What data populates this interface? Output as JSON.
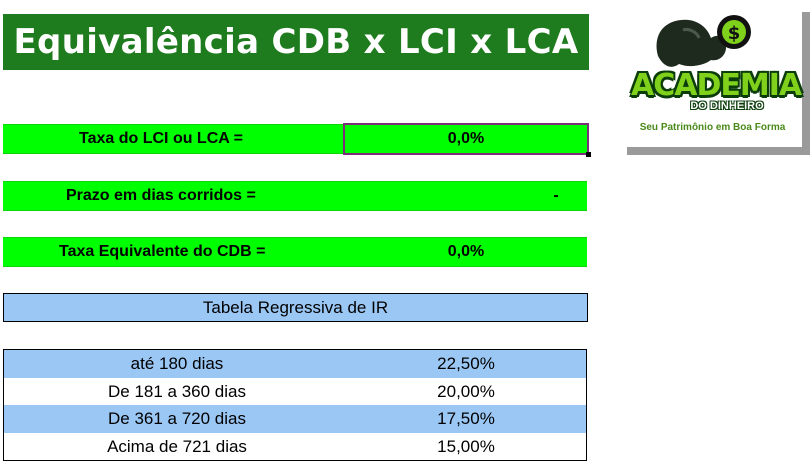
{
  "title": "Equivalência CDB x LCI x LCA",
  "fields": {
    "rate_label": "Taxa do LCI ou LCA  =",
    "rate_value": "0,0%",
    "term_label": "Prazo em dias corridos =",
    "term_value": "-",
    "equiv_label": "Taxa Equivalente do CDB =",
    "equiv_value": "0,0%"
  },
  "ir_table": {
    "header": "Tabela Regressiva de IR",
    "rows": [
      {
        "range": "até 180 dias",
        "rate": "22,50%"
      },
      {
        "range": "De 181 a 360 dias",
        "rate": "20,00%"
      },
      {
        "range": "De 361 a 720 dias",
        "rate": "17,50%"
      },
      {
        "range": "Acima de 721 dias",
        "rate": "15,00%"
      }
    ]
  },
  "logo": {
    "brand": "ACADEMIA",
    "subtitle": "DO DINHEIRO",
    "tagline": "Seu Patrimônio em Boa Forma",
    "currency_symbol": "$"
  },
  "colors": {
    "title_bg": "#1e7b1e",
    "field_bg": "#00ff00",
    "table_blue": "#9bc7f5",
    "logo_green": "#7fd11b"
  }
}
